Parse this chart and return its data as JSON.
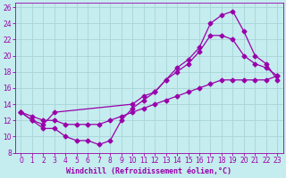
{
  "xlabel": "Windchill (Refroidissement éolien,°C)",
  "bg_color": "#c5ecee",
  "grid_color": "#a8d5d8",
  "line_color": "#9900aa",
  "spine_color": "#9900aa",
  "tick_color": "#9900aa",
  "xlabel_color": "#9900aa",
  "xlim": [
    -0.5,
    23.5
  ],
  "ylim": [
    8,
    26.5
  ],
  "xticks": [
    0,
    1,
    2,
    3,
    4,
    5,
    6,
    7,
    8,
    9,
    10,
    11,
    12,
    13,
    14,
    15,
    16,
    17,
    18,
    19,
    20,
    21,
    22,
    23
  ],
  "yticks": [
    8,
    10,
    12,
    14,
    16,
    18,
    20,
    22,
    24,
    26
  ],
  "line1_x": [
    0,
    1,
    2,
    3,
    10,
    11,
    12,
    13,
    14,
    15,
    16,
    17,
    18,
    19,
    20,
    21,
    22,
    23
  ],
  "line1_y": [
    13,
    12,
    11.5,
    13,
    14,
    15,
    15.5,
    17,
    18.5,
    19.5,
    21,
    24,
    25,
    25.5,
    23,
    20,
    19,
    17
  ],
  "line2_x": [
    0,
    1,
    2,
    3,
    4,
    5,
    6,
    7,
    8,
    9,
    10,
    11,
    12,
    13,
    14,
    15,
    16,
    17,
    18,
    19,
    20,
    21,
    22,
    23
  ],
  "line2_y": [
    13,
    12,
    11,
    11,
    10,
    9.5,
    9.5,
    9,
    9.5,
    12,
    13.5,
    14.5,
    15.5,
    17,
    18,
    19,
    20.5,
    22.5,
    22.5,
    22,
    20,
    19,
    18.5,
    17.5
  ],
  "line3_x": [
    0,
    1,
    2,
    3,
    4,
    5,
    6,
    7,
    8,
    9,
    10,
    11,
    12,
    13,
    14,
    15,
    16,
    17,
    18,
    19,
    20,
    21,
    22,
    23
  ],
  "line3_y": [
    13,
    12.5,
    12,
    12,
    11.5,
    11.5,
    11.5,
    11.5,
    12,
    12.5,
    13,
    13.5,
    14,
    14.5,
    15,
    15.5,
    16,
    16.5,
    17,
    17,
    17,
    17,
    17,
    17.5
  ]
}
